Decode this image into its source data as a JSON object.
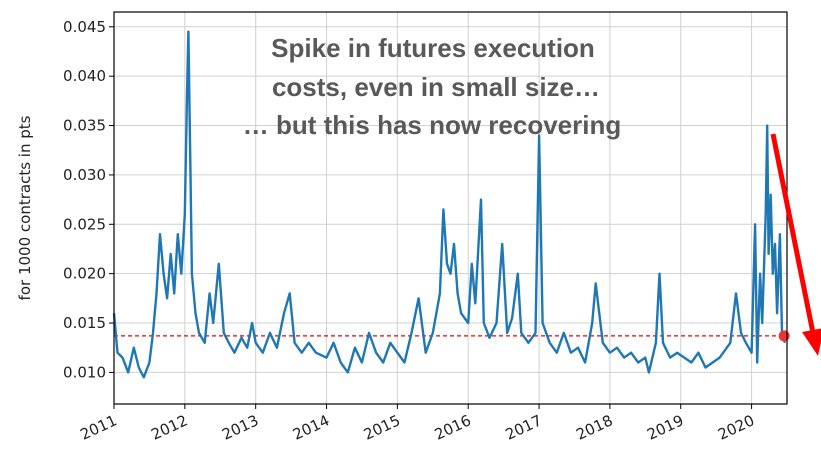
{
  "chart_data": {
    "type": "line",
    "ylabel": "for 1000 contracts in pts",
    "xlabel": "",
    "title": "",
    "xlim": [
      2011.0,
      2020.5
    ],
    "ylim": [
      0.0068,
      0.0465
    ],
    "grid": true,
    "x_ticks": [
      2011,
      2012,
      2013,
      2014,
      2015,
      2016,
      2017,
      2018,
      2019,
      2020
    ],
    "x_tick_labels": [
      "2011",
      "2012",
      "2013",
      "2014",
      "2015",
      "2016",
      "2017",
      "2018",
      "2019",
      "2020"
    ],
    "y_ticks": [
      0.01,
      0.015,
      0.02,
      0.025,
      0.03,
      0.035,
      0.04,
      0.045
    ],
    "y_tick_labels": [
      "0.010",
      "0.015",
      "0.020",
      "0.025",
      "0.030",
      "0.035",
      "0.040",
      "0.045"
    ],
    "series": [
      {
        "color": "#1f77b4",
        "points": [
          [
            2011.0,
            0.016
          ],
          [
            2011.05,
            0.012
          ],
          [
            2011.12,
            0.0115
          ],
          [
            2011.2,
            0.01
          ],
          [
            2011.28,
            0.0125
          ],
          [
            2011.35,
            0.0105
          ],
          [
            2011.42,
            0.0095
          ],
          [
            2011.5,
            0.011
          ],
          [
            2011.55,
            0.014
          ],
          [
            2011.6,
            0.018
          ],
          [
            2011.65,
            0.024
          ],
          [
            2011.7,
            0.02
          ],
          [
            2011.75,
            0.0175
          ],
          [
            2011.8,
            0.022
          ],
          [
            2011.85,
            0.018
          ],
          [
            2011.9,
            0.024
          ],
          [
            2011.95,
            0.02
          ],
          [
            2012.0,
            0.026
          ],
          [
            2012.03,
            0.038
          ],
          [
            2012.05,
            0.0445
          ],
          [
            2012.08,
            0.03
          ],
          [
            2012.1,
            0.02
          ],
          [
            2012.15,
            0.016
          ],
          [
            2012.2,
            0.014
          ],
          [
            2012.28,
            0.013
          ],
          [
            2012.35,
            0.018
          ],
          [
            2012.4,
            0.015
          ],
          [
            2012.48,
            0.021
          ],
          [
            2012.55,
            0.014
          ],
          [
            2012.62,
            0.013
          ],
          [
            2012.7,
            0.012
          ],
          [
            2012.8,
            0.0135
          ],
          [
            2012.88,
            0.0125
          ],
          [
            2012.95,
            0.015
          ],
          [
            2013.0,
            0.013
          ],
          [
            2013.1,
            0.012
          ],
          [
            2013.2,
            0.014
          ],
          [
            2013.3,
            0.0125
          ],
          [
            2013.4,
            0.016
          ],
          [
            2013.48,
            0.018
          ],
          [
            2013.55,
            0.013
          ],
          [
            2013.65,
            0.012
          ],
          [
            2013.75,
            0.013
          ],
          [
            2013.85,
            0.012
          ],
          [
            2014.0,
            0.0115
          ],
          [
            2014.1,
            0.013
          ],
          [
            2014.2,
            0.011
          ],
          [
            2014.3,
            0.01
          ],
          [
            2014.4,
            0.0125
          ],
          [
            2014.5,
            0.011
          ],
          [
            2014.6,
            0.014
          ],
          [
            2014.7,
            0.012
          ],
          [
            2014.8,
            0.011
          ],
          [
            2014.9,
            0.013
          ],
          [
            2015.0,
            0.012
          ],
          [
            2015.1,
            0.011
          ],
          [
            2015.2,
            0.014
          ],
          [
            2015.3,
            0.0175
          ],
          [
            2015.4,
            0.012
          ],
          [
            2015.5,
            0.014
          ],
          [
            2015.6,
            0.018
          ],
          [
            2015.65,
            0.0265
          ],
          [
            2015.7,
            0.021
          ],
          [
            2015.75,
            0.02
          ],
          [
            2015.8,
            0.023
          ],
          [
            2015.85,
            0.018
          ],
          [
            2015.9,
            0.016
          ],
          [
            2016.0,
            0.015
          ],
          [
            2016.05,
            0.021
          ],
          [
            2016.1,
            0.017
          ],
          [
            2016.18,
            0.0275
          ],
          [
            2016.22,
            0.015
          ],
          [
            2016.3,
            0.0135
          ],
          [
            2016.4,
            0.015
          ],
          [
            2016.48,
            0.023
          ],
          [
            2016.55,
            0.014
          ],
          [
            2016.62,
            0.0155
          ],
          [
            2016.7,
            0.02
          ],
          [
            2016.75,
            0.014
          ],
          [
            2016.85,
            0.013
          ],
          [
            2016.95,
            0.014
          ],
          [
            2017.0,
            0.034
          ],
          [
            2017.05,
            0.015
          ],
          [
            2017.15,
            0.013
          ],
          [
            2017.25,
            0.012
          ],
          [
            2017.35,
            0.014
          ],
          [
            2017.45,
            0.012
          ],
          [
            2017.55,
            0.0125
          ],
          [
            2017.65,
            0.011
          ],
          [
            2017.75,
            0.015
          ],
          [
            2017.8,
            0.019
          ],
          [
            2017.9,
            0.013
          ],
          [
            2018.0,
            0.012
          ],
          [
            2018.1,
            0.0125
          ],
          [
            2018.2,
            0.0115
          ],
          [
            2018.3,
            0.012
          ],
          [
            2018.4,
            0.011
          ],
          [
            2018.5,
            0.0115
          ],
          [
            2018.55,
            0.01
          ],
          [
            2018.65,
            0.013
          ],
          [
            2018.7,
            0.02
          ],
          [
            2018.75,
            0.013
          ],
          [
            2018.85,
            0.0115
          ],
          [
            2018.95,
            0.012
          ],
          [
            2019.05,
            0.0115
          ],
          [
            2019.15,
            0.011
          ],
          [
            2019.25,
            0.012
          ],
          [
            2019.35,
            0.0105
          ],
          [
            2019.45,
            0.011
          ],
          [
            2019.55,
            0.0115
          ],
          [
            2019.6,
            0.012
          ],
          [
            2019.7,
            0.013
          ],
          [
            2019.78,
            0.018
          ],
          [
            2019.85,
            0.014
          ],
          [
            2019.92,
            0.013
          ],
          [
            2020.0,
            0.012
          ],
          [
            2020.05,
            0.025
          ],
          [
            2020.08,
            0.011
          ],
          [
            2020.12,
            0.02
          ],
          [
            2020.15,
            0.015
          ],
          [
            2020.2,
            0.026
          ],
          [
            2020.22,
            0.035
          ],
          [
            2020.24,
            0.022
          ],
          [
            2020.27,
            0.028
          ],
          [
            2020.3,
            0.02
          ],
          [
            2020.33,
            0.023
          ],
          [
            2020.36,
            0.016
          ],
          [
            2020.4,
            0.024
          ],
          [
            2020.43,
            0.014
          ],
          [
            2020.47,
            0.013
          ]
        ]
      }
    ],
    "reference_line": {
      "y": 0.0137,
      "color": "#ee0000",
      "style": "dashed"
    },
    "marker": {
      "x": 2020.46,
      "y": 0.0137,
      "color": "#ee3333"
    },
    "annotation": {
      "lines": [
        "Spike in futures execution",
        "costs, even in small size…",
        "… but this has now recovering"
      ],
      "color": "#595959"
    },
    "arrow": {
      "color": "#ff0000",
      "direction": "down"
    }
  }
}
